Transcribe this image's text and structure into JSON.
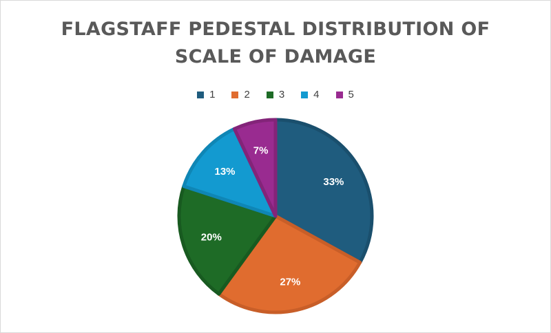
{
  "chart_data": {
    "type": "pie",
    "title_lines": [
      "FLAGSTAFF PEDESTAL DISTRIBUTION OF",
      "SCALE OF DAMAGE"
    ],
    "legend_position": "top",
    "categories": [
      "1",
      "2",
      "3",
      "4",
      "5"
    ],
    "values": [
      33,
      27,
      20,
      13,
      7
    ],
    "labels": [
      "33%",
      "27%",
      "20%",
      "13%",
      "7%"
    ],
    "colors": [
      "#1f5c7e",
      "#e06c2f",
      "#1e6b26",
      "#139ad0",
      "#992b90"
    ],
    "border_colors": [
      "#1a4f6d",
      "#c85e28",
      "#185a20",
      "#0f86b5",
      "#832479"
    ]
  }
}
